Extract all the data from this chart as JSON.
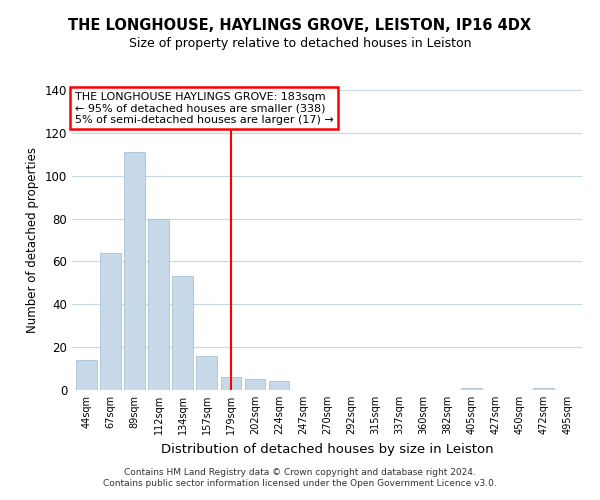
{
  "title": "THE LONGHOUSE, HAYLINGS GROVE, LEISTON, IP16 4DX",
  "subtitle": "Size of property relative to detached houses in Leiston",
  "xlabel": "Distribution of detached houses by size in Leiston",
  "ylabel": "Number of detached properties",
  "bar_labels": [
    "44sqm",
    "67sqm",
    "89sqm",
    "112sqm",
    "134sqm",
    "157sqm",
    "179sqm",
    "202sqm",
    "224sqm",
    "247sqm",
    "270sqm",
    "292sqm",
    "315sqm",
    "337sqm",
    "360sqm",
    "382sqm",
    "405sqm",
    "427sqm",
    "450sqm",
    "472sqm",
    "495sqm"
  ],
  "bar_values": [
    14,
    64,
    111,
    80,
    53,
    16,
    6,
    5,
    4,
    0,
    0,
    0,
    0,
    0,
    0,
    0,
    1,
    0,
    0,
    1,
    0
  ],
  "bar_color": "#c8daea",
  "bar_edge_color": "#a8c0d6",
  "reference_line_x": 6,
  "annotation_title": "THE LONGHOUSE HAYLINGS GROVE: 183sqm",
  "annotation_line1": "← 95% of detached houses are smaller (338)",
  "annotation_line2": "5% of semi-detached houses are larger (17) →",
  "ylim": [
    0,
    140
  ],
  "yticks": [
    0,
    20,
    40,
    60,
    80,
    100,
    120,
    140
  ],
  "footer1": "Contains HM Land Registry data © Crown copyright and database right 2024.",
  "footer2": "Contains public sector information licensed under the Open Government Licence v3.0."
}
